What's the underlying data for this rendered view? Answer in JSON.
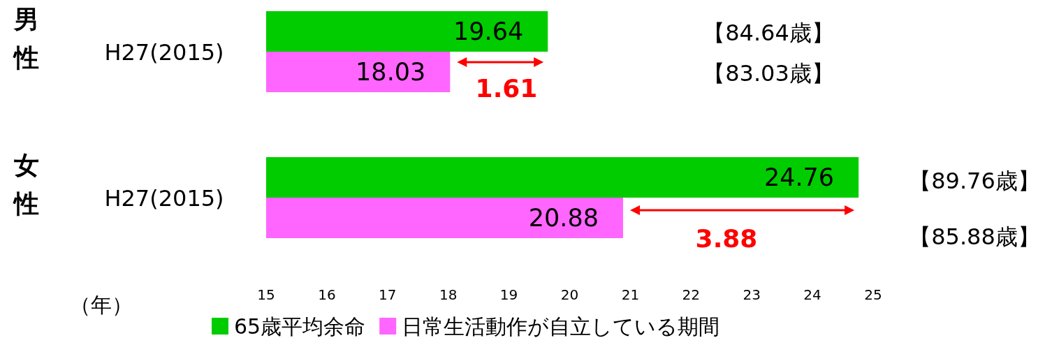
{
  "chart_data": {
    "type": "bar",
    "orientation": "horizontal",
    "categories": [
      "H27(2015)",
      "H27(2015)"
    ],
    "series": [
      {
        "name": "65歳平均余命",
        "color": "#00cc00",
        "values": [
          19.64,
          24.76
        ]
      },
      {
        "name": "日常生活動作が自立している期間",
        "color": "#ff66ff",
        "values": [
          18.03,
          20.88
        ]
      }
    ],
    "xlim": [
      15,
      25
    ],
    "xticks": [
      15,
      16,
      17,
      18,
      19,
      20,
      21,
      22,
      23,
      24,
      25
    ],
    "xlabel": "（年）",
    "data_labels": true,
    "legend": "bottom",
    "annotations": [
      "男性",
      "女性",
      "【84.64歳】",
      "【83.03歳】",
      "【89.76歳】",
      "【85.88歳】",
      "1.61",
      "3.88"
    ]
  }
}
